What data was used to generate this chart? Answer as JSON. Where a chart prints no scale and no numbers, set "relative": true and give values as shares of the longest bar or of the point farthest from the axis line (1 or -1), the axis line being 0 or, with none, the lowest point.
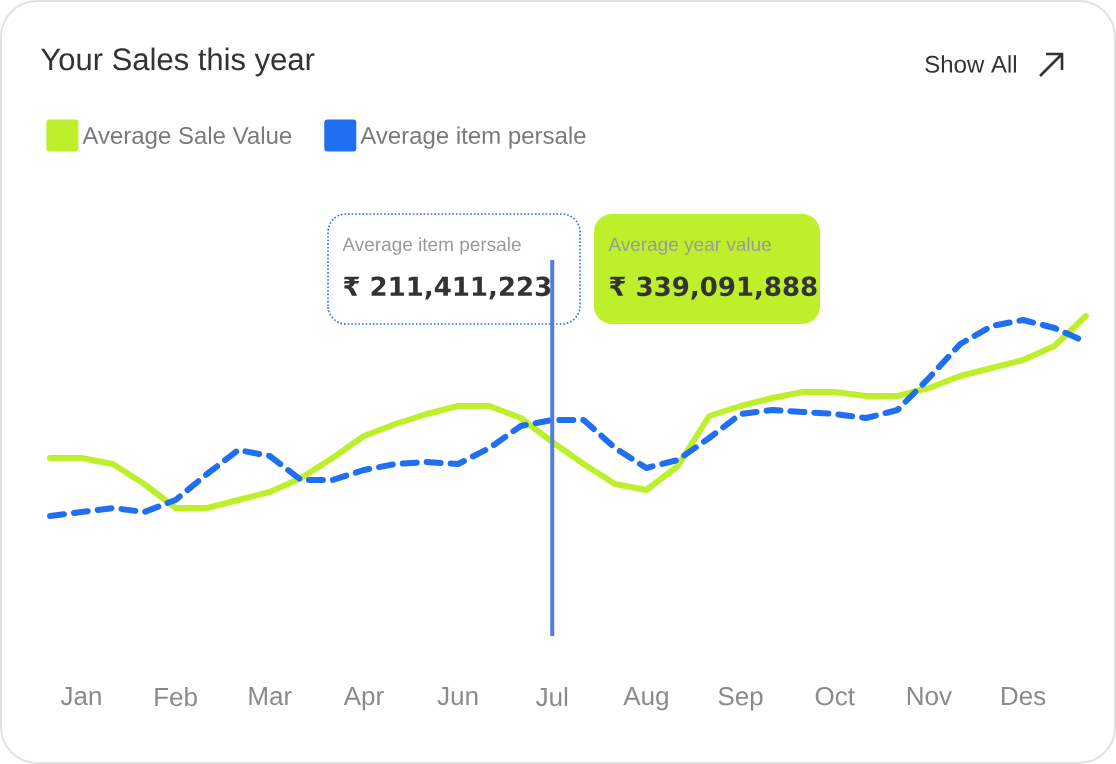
{
  "chart_data": {
    "type": "line",
    "title": "Your Sales this year",
    "relative": true,
    "categories": [
      null,
      "Jan",
      null,
      null,
      "Feb",
      null,
      null,
      "Mar",
      null,
      null,
      "Apr",
      null,
      null,
      "Jun",
      null,
      null,
      "Jul",
      null,
      null,
      "Aug",
      null,
      null,
      "Sep",
      null,
      null,
      "Oct",
      null,
      null,
      "Nov",
      null,
      null,
      "Des",
      null,
      null
    ],
    "series": [
      {
        "name": "Average Sale Value",
        "color": "#bdf02a",
        "line_style": "solid",
        "values": [
          0.29,
          0.29,
          0.26,
          0.16,
          0.04,
          0.04,
          0.08,
          0.12,
          0.19,
          0.29,
          0.4,
          0.46,
          0.51,
          0.55,
          0.55,
          0.49,
          0.37,
          0.26,
          0.16,
          0.13,
          0.25,
          0.5,
          0.55,
          0.59,
          0.62,
          0.62,
          0.6,
          0.6,
          0.64,
          0.7,
          0.74,
          0.78,
          0.85,
          1
        ]
      },
      {
        "name": "Average item persale",
        "color": "#1f6ff0",
        "line_style": "dashed",
        "values": [
          0,
          0.02,
          0.04,
          0.02,
          0.08,
          0.21,
          0.33,
          0.3,
          0.18,
          0.18,
          0.23,
          0.26,
          0.27,
          0.26,
          0.34,
          0.45,
          0.48,
          0.48,
          0.34,
          0.24,
          0.28,
          0.39,
          0.51,
          0.53,
          0.52,
          0.51,
          0.49,
          0.53,
          0.69,
          0.86,
          0.95,
          0.98,
          0.94,
          0.87
        ]
      }
    ],
    "ref_lines": [
      {
        "axis": "x",
        "value": "Jul",
        "color": "#4f7de0"
      }
    ],
    "legend": "top left",
    "marker": "none",
    "annotations": [
      "Show All",
      "Average item persale",
      "₹ 211,411,223",
      "Average year value",
      "₹ 339,091,888"
    ]
  }
}
